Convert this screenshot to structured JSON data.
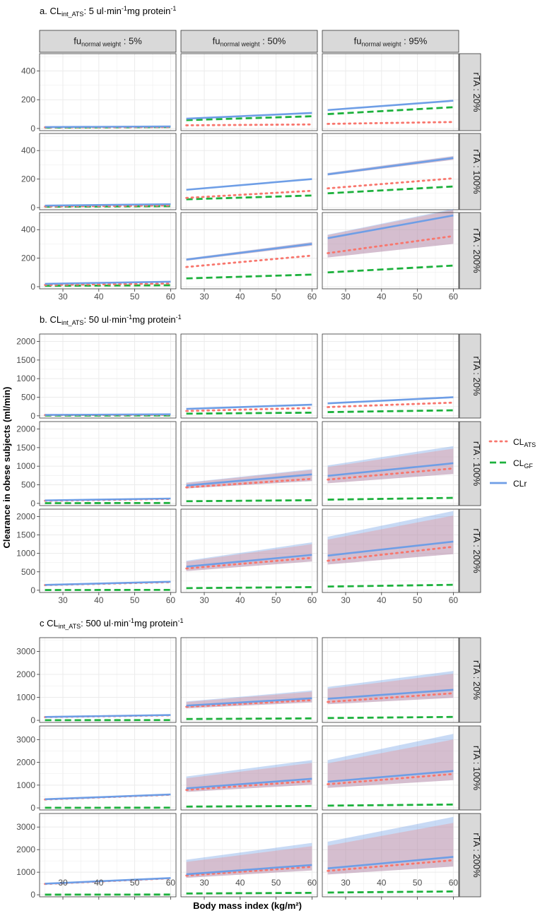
{
  "figure": {
    "xlabel": "Body mass index (kg/m²)",
    "ylabel": "Clearance in obese subjects (ml/min)",
    "column_strips": [
      {
        "prefix": "fu",
        "sub": "normal weight",
        "suffix": " : 5%"
      },
      {
        "prefix": "fu",
        "sub": "normal weight",
        "suffix": " : 50%"
      },
      {
        "prefix": "fu",
        "sub": "normal weight",
        "suffix": " : 95%"
      }
    ],
    "row_strips": [
      "rTA : 20%",
      "rTA : 100%",
      "rTA : 200%"
    ],
    "legend": [
      {
        "key": "CL_ATS",
        "base": "CL",
        "sub": "ATS",
        "color": "#f8766d",
        "style": "dotted"
      },
      {
        "key": "CL_GF",
        "base": "CL",
        "sub": "GF",
        "color": "#1db13d",
        "style": "dashed"
      },
      {
        "key": "CLr",
        "base": "CLr",
        "sub": "",
        "color": "#6e9ee6",
        "style": "solid"
      }
    ]
  },
  "chart_data": [
    {
      "type": "line",
      "panel": "a",
      "title": {
        "prefix": "a. CL",
        "sub": "int_ATS",
        "mid": ": 5 ul·min",
        "sup": "-1",
        "suffix": "mg protein",
        "sup2": "-1"
      },
      "x": [
        25,
        60
      ],
      "xticks": [
        30,
        40,
        50,
        60
      ],
      "xlim": [
        23.5,
        61.5
      ],
      "ylim": [
        -15,
        520
      ],
      "yticks": [
        0,
        200,
        400
      ],
      "facets": [
        [
          {
            "CL_ATS": [
              8,
              10
            ],
            "CL_GF": [
              6,
              10
            ],
            "CLr": [
              10,
              14
            ],
            "band": null
          },
          {
            "CL_ATS": [
              22,
              28
            ],
            "CL_GF": [
              58,
              85
            ],
            "CLr": [
              68,
              108
            ],
            "band": null
          },
          {
            "CL_ATS": [
              32,
              45
            ],
            "CL_GF": [
              100,
              148
            ],
            "CLr": [
              128,
              193
            ],
            "band": null
          }
        ],
        [
          {
            "CL_ATS": [
              8,
              15
            ],
            "CL_GF": [
              6,
              10
            ],
            "CLr": [
              14,
              24
            ],
            "band": null
          },
          {
            "CL_ATS": [
              68,
              118
            ],
            "CL_GF": [
              58,
              85
            ],
            "CLr": [
              125,
              200
            ],
            "band": null
          },
          {
            "CL_ATS": [
              135,
              205
            ],
            "CL_GF": [
              100,
              148
            ],
            "CLr": [
              233,
              348
            ],
            "band": {
              "lo": [
                225,
                335
              ],
              "hi": [
                243,
                362
              ]
            }
          }
        ],
        [
          {
            "CL_ATS": [
              12,
              22
            ],
            "CL_GF": [
              6,
              10
            ],
            "CLr": [
              20,
              35
            ],
            "band": null
          },
          {
            "CL_ATS": [
              138,
              218
            ],
            "CL_GF": [
              58,
              85
            ],
            "CLr": [
              190,
              300
            ],
            "band": {
              "lo": [
                182,
                288
              ],
              "hi": [
                198,
                313
              ]
            }
          },
          {
            "CL_ATS": [
              235,
              355
            ],
            "CL_GF": [
              100,
              148
            ],
            "CLr": [
              340,
              500
            ],
            "band": {
              "lo": [
                205,
                300
              ],
              "hi": [
                365,
                545
              ]
            }
          }
        ]
      ]
    },
    {
      "type": "line",
      "panel": "b",
      "title": {
        "prefix": "b. CL",
        "sub": "int_ATS",
        "mid": ": 50 ul·min",
        "sup": "-1",
        "suffix": "mg protein",
        "sup2": "-1"
      },
      "x": [
        25,
        60
      ],
      "xticks": [
        30,
        40,
        50,
        60
      ],
      "xlim": [
        23.5,
        61.5
      ],
      "ylim": [
        -60,
        2200
      ],
      "yticks": [
        0,
        500,
        1000,
        1500,
        2000
      ],
      "facets": [
        [
          {
            "CL_ATS": [
              20,
              30
            ],
            "CL_GF": [
              6,
              10
            ],
            "CLr": [
              25,
              40
            ],
            "band": null
          },
          {
            "CL_ATS": [
              130,
              210
            ],
            "CL_GF": [
              58,
              85
            ],
            "CLr": [
              185,
              300
            ],
            "band": {
              "lo": [
                175,
                285
              ],
              "hi": [
                195,
                315
              ]
            }
          },
          {
            "CL_ATS": [
              235,
              355
            ],
            "CL_GF": [
              100,
              148
            ],
            "CLr": [
              335,
              500
            ],
            "band": {
              "lo": [
                320,
                480
              ],
              "hi": [
                350,
                525
              ]
            }
          }
        ],
        [
          {
            "CL_ATS": [
              70,
              120
            ],
            "CL_GF": [
              6,
              10
            ],
            "CLr": [
              80,
              130
            ],
            "band": null
          },
          {
            "CL_ATS": [
              430,
              660
            ],
            "CL_GF": [
              58,
              85
            ],
            "CLr": [
              480,
              780
            ],
            "band": {
              "lo": [
                400,
                600
              ],
              "hi": [
                560,
                920
              ]
            }
          },
          {
            "CL_ATS": [
              640,
              940
            ],
            "CL_GF": [
              100,
              148
            ],
            "CLr": [
              740,
              1080
            ],
            "band": {
              "lo": [
                540,
                790
              ],
              "hi": [
                1020,
                1540
              ]
            }
          }
        ],
        [
          {
            "CL_ATS": [
              140,
              220
            ],
            "CL_GF": [
              6,
              10
            ],
            "CLr": [
              145,
              230
            ],
            "band": null
          },
          {
            "CL_ATS": [
              590,
              880
            ],
            "CL_GF": [
              58,
              85
            ],
            "CLr": [
              640,
              960
            ],
            "band": {
              "lo": [
                520,
                780
              ],
              "hi": [
                800,
                1300
              ]
            }
          },
          {
            "CL_ATS": [
              800,
              1180
            ],
            "CL_GF": [
              100,
              148
            ],
            "CLr": [
              940,
              1320
            ],
            "band": {
              "lo": [
                700,
                980
              ],
              "hi": [
                1450,
                2150
              ]
            }
          }
        ]
      ]
    },
    {
      "type": "line",
      "panel": "c",
      "title": {
        "prefix": "c CL",
        "sub": "int_ATS",
        "mid": ": 500 ul·min",
        "sup": "-1",
        "suffix": "mg protein",
        "sup2": "-1"
      },
      "x": [
        25,
        60
      ],
      "xticks": [
        30,
        40,
        50,
        60
      ],
      "xlim": [
        23.5,
        61.5
      ],
      "ylim": [
        -90,
        3600
      ],
      "yticks": [
        0,
        1000,
        2000,
        3000
      ],
      "facets": [
        [
          {
            "CL_ATS": [
              140,
              220
            ],
            "CL_GF": [
              6,
              10
            ],
            "CLr": [
              145,
              230
            ],
            "band": null
          },
          {
            "CL_ATS": [
              590,
              880
            ],
            "CL_GF": [
              58,
              85
            ],
            "CLr": [
              640,
              960
            ],
            "band": {
              "lo": [
                520,
                780
              ],
              "hi": [
                820,
                1300
              ]
            }
          },
          {
            "CL_ATS": [
              800,
              1180
            ],
            "CL_GF": [
              100,
              148
            ],
            "CLr": [
              940,
              1330
            ],
            "band": {
              "lo": [
                700,
                980
              ],
              "hi": [
                1450,
                2150
              ]
            }
          }
        ],
        [
          {
            "CL_ATS": [
              370,
              580
            ],
            "CL_GF": [
              6,
              10
            ],
            "CLr": [
              380,
              590
            ],
            "band": null
          },
          {
            "CL_ATS": [
              790,
              1180
            ],
            "CL_GF": [
              58,
              85
            ],
            "CLr": [
              860,
              1280
            ],
            "band": {
              "lo": [
                700,
                1020
              ],
              "hi": [
                1380,
                2100
              ]
            }
          },
          {
            "CL_ATS": [
              1040,
              1490
            ],
            "CL_GF": [
              100,
              148
            ],
            "CLr": [
              1150,
              1620
            ],
            "band": {
              "lo": [
                880,
                1220
              ],
              "hi": [
                2100,
                3250
              ]
            }
          }
        ],
        [
          {
            "CL_ATS": [
              480,
              730
            ],
            "CL_GF": [
              6,
              10
            ],
            "CLr": [
              490,
              740
            ],
            "band": null
          },
          {
            "CL_ATS": [
              850,
              1240
            ],
            "CL_GF": [
              58,
              85
            ],
            "CLr": [
              910,
              1320
            ],
            "band": {
              "lo": [
                750,
                1080
              ],
              "hi": [
                1550,
                2300
              ]
            }
          },
          {
            "CL_ATS": [
              1060,
              1530
            ],
            "CL_GF": [
              100,
              148
            ],
            "CLr": [
              1170,
              1680
            ],
            "band": {
              "lo": [
                900,
                1250
              ],
              "hi": [
                2350,
                3450
              ]
            }
          }
        ]
      ]
    }
  ]
}
